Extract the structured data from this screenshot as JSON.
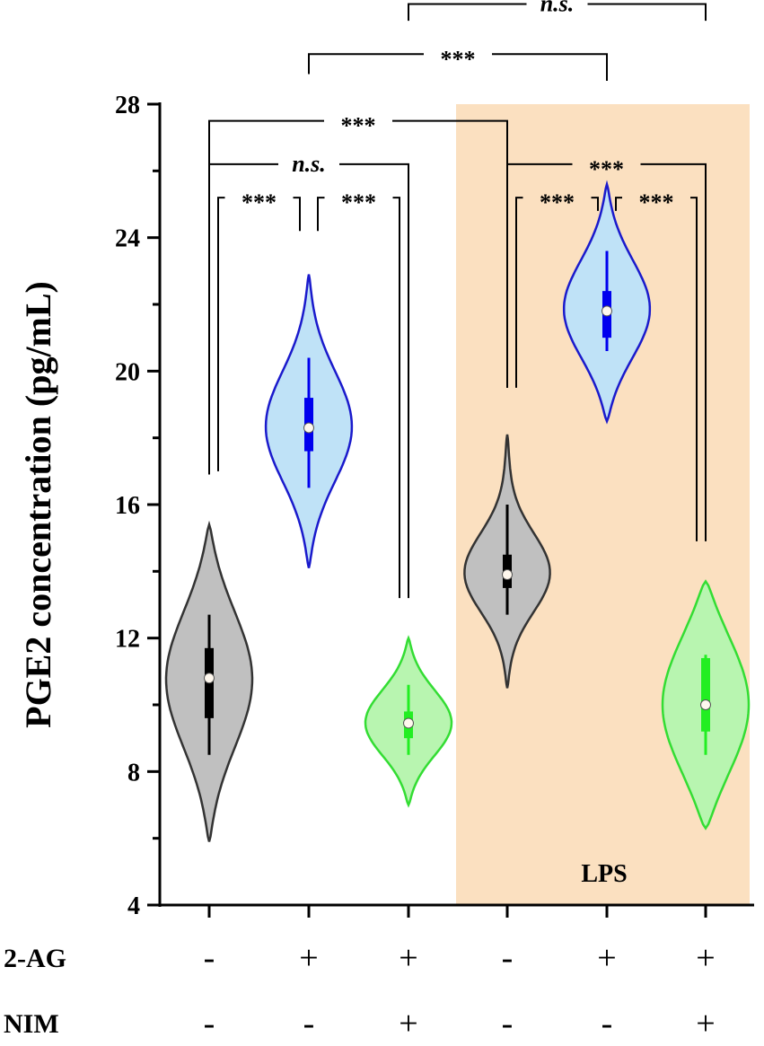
{
  "chart_data": {
    "type": "violin",
    "ylabel": "PGE2 concentration (pg/mL)",
    "xlabel": "",
    "ylim": [
      4,
      28
    ],
    "yticks": [
      4,
      8,
      12,
      16,
      20,
      24,
      28
    ],
    "grid": false,
    "conditions": [
      {
        "label": "2-AG",
        "values": [
          "-",
          "+",
          "+",
          "-",
          "+",
          "+"
        ]
      },
      {
        "label": "NIM",
        "values": [
          "-",
          "-",
          "+",
          "-",
          "-",
          "+"
        ]
      }
    ],
    "shaded_region": {
      "label": "LPS",
      "groups": [
        4,
        5,
        6
      ],
      "color": "#fbe0c0"
    },
    "groups": [
      {
        "median": 10.8,
        "q1": 9.6,
        "q3": 11.7,
        "whisker_low": 8.5,
        "whisker_high": 12.7,
        "min": 5.9,
        "max": 15.4,
        "fill": "#c0c0c0",
        "stroke": "#333333",
        "box": "#000000"
      },
      {
        "median": 18.3,
        "q1": 17.6,
        "q3": 19.2,
        "whisker_low": 16.5,
        "whisker_high": 20.4,
        "min": 14.1,
        "max": 22.9,
        "fill": "#bfe2f7",
        "stroke": "#1a1acc",
        "box": "#0000ee"
      },
      {
        "median": 9.45,
        "q1": 9.0,
        "q3": 9.8,
        "whisker_low": 8.5,
        "whisker_high": 10.6,
        "min": 7.0,
        "max": 12.0,
        "fill": "#b8f5b0",
        "stroke": "#33dd33",
        "box": "#22ee22"
      },
      {
        "median": 13.9,
        "q1": 13.5,
        "q3": 14.5,
        "whisker_low": 12.7,
        "whisker_high": 16.0,
        "min": 10.5,
        "max": 18.1,
        "fill": "#c0c0c0",
        "stroke": "#333333",
        "box": "#000000"
      },
      {
        "median": 21.8,
        "q1": 21.0,
        "q3": 22.4,
        "whisker_low": 20.6,
        "whisker_high": 23.6,
        "min": 18.5,
        "max": 25.6,
        "fill": "#bfe2f7",
        "stroke": "#1a1acc",
        "box": "#0000ee"
      },
      {
        "median": 10.0,
        "q1": 9.2,
        "q3": 11.4,
        "whisker_low": 8.5,
        "whisker_high": 11.5,
        "min": 6.3,
        "max": 13.7,
        "fill": "#b8f5b0",
        "stroke": "#33dd33",
        "box": "#22ee22"
      }
    ],
    "significance": [
      {
        "from": 1,
        "to": 2,
        "label": "***",
        "y_bar": 25.2,
        "legs": [
          17.0,
          24.2
        ]
      },
      {
        "from": 2,
        "to": 3,
        "label": "***",
        "y_bar": 25.2,
        "legs": [
          24.2,
          13.2
        ]
      },
      {
        "from": 1,
        "to": 3,
        "label": "n.s.",
        "y_bar": 26.2,
        "legs": [
          16.9,
          13.2
        ]
      },
      {
        "from": 1,
        "to": 4,
        "label": "***",
        "y_bar": 27.5,
        "legs": [
          16.9,
          19.5
        ]
      },
      {
        "from": 4,
        "to": 5,
        "label": "***",
        "y_bar": 25.2,
        "legs": [
          19.5,
          24.8
        ]
      },
      {
        "from": 5,
        "to": 6,
        "label": "***",
        "y_bar": 25.2,
        "legs": [
          24.8,
          14.9
        ]
      },
      {
        "from": 4,
        "to": 6,
        "label": "***",
        "y_bar": 26.2,
        "legs": [
          19.5,
          14.9
        ]
      },
      {
        "from": 2,
        "to": 5,
        "label": "***",
        "y_bar": 29.5,
        "legs": [
          28.9,
          28.7
        ]
      },
      {
        "from": 3,
        "to": 6,
        "label": "n.s.",
        "y_bar": 31.0,
        "legs": [
          30.5,
          30.5
        ]
      }
    ]
  }
}
